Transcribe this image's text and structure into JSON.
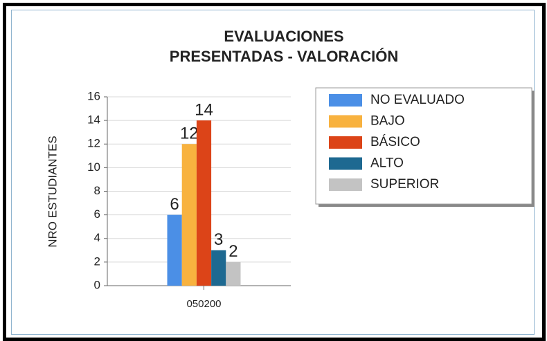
{
  "chart_data": {
    "type": "bar",
    "title": "EVALUACIONES PRESENTADAS - VALORACIÓN",
    "y_label": "NRO ESTUDIANTES",
    "categories": [
      "050200"
    ],
    "series": [
      {
        "name": "NO EVALUADO",
        "color": "#4b8fe6",
        "values": [
          6
        ]
      },
      {
        "name": "BAJO",
        "color": "#f8b23f",
        "values": [
          12
        ]
      },
      {
        "name": "BÁSICO",
        "color": "#dc4418",
        "values": [
          14
        ]
      },
      {
        "name": "ALTO",
        "color": "#1e6991",
        "values": [
          3
        ]
      },
      {
        "name": "SUPERIOR",
        "color": "#c3c3c3",
        "values": [
          2
        ]
      }
    ],
    "ylim": [
      0,
      16
    ],
    "yticks": [
      0,
      2,
      4,
      6,
      8,
      10,
      12,
      14,
      16
    ],
    "grid": true,
    "legend": "right"
  }
}
